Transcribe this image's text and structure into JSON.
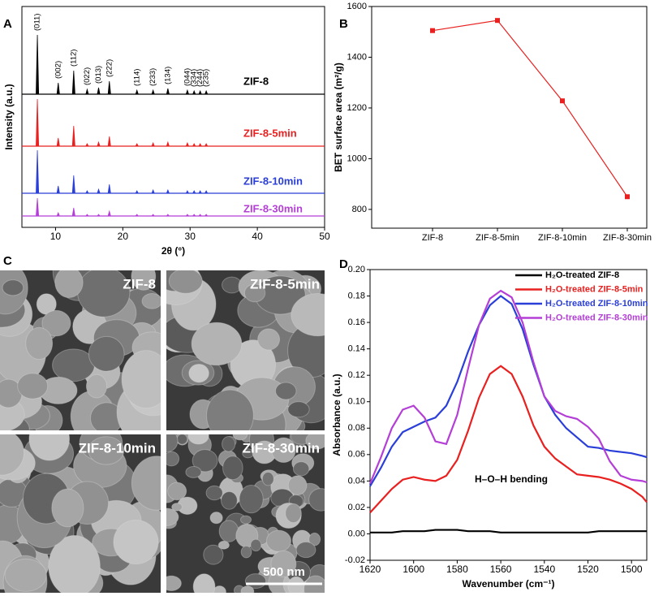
{
  "chart_data": [
    {
      "type": "stick",
      "label": "A",
      "xlabel": "2θ (°)",
      "ylabel": "Intensity (a.u.)",
      "xlim": [
        5,
        50
      ],
      "xticks": [
        10,
        20,
        30,
        40,
        50
      ],
      "x": [
        7.3,
        10.4,
        12.7,
        14.7,
        16.4,
        18.0,
        22.1,
        24.5,
        26.7,
        29.6,
        30.6,
        31.5,
        32.4
      ],
      "peak_labels": [
        "(011)",
        "(002)",
        "(112)",
        "(022)",
        "(013)",
        "(222)",
        "(114)",
        "(233)",
        "(134)",
        "(044)",
        "(334)",
        "(244)",
        "(235)"
      ],
      "series": [
        {
          "name": "ZIF-8",
          "color": "#000000",
          "values": [
            73,
            14,
            29,
            6,
            8,
            16,
            5,
            5,
            7,
            5,
            4,
            4,
            4
          ]
        },
        {
          "name": "ZIF-8-5min",
          "color": "#e8201f",
          "values": [
            58,
            10,
            25,
            3,
            5,
            12,
            3,
            4,
            5,
            4,
            3,
            3,
            3
          ]
        },
        {
          "name": "ZIF-8-10min",
          "color": "#2a3ed8",
          "values": [
            53,
            9,
            22,
            3,
            5,
            11,
            3,
            4,
            4,
            3,
            3,
            3,
            3
          ]
        },
        {
          "name": "ZIF-8-30min",
          "color": "#b43fd6",
          "values": [
            22,
            4,
            10,
            2,
            2,
            6,
            2,
            2,
            2,
            2,
            2,
            2,
            2
          ]
        }
      ]
    },
    {
      "type": "line",
      "label": "B",
      "ylabel": "BET surface area (m²/g)",
      "categories": [
        "ZIF-8",
        "ZIF-8-5min",
        "ZIF-8-10min",
        "ZIF-8-30min"
      ],
      "values": [
        1505,
        1545,
        1228,
        850
      ],
      "color": "#e8201f",
      "ylim": [
        726,
        1600
      ],
      "yticks": [
        800,
        1000,
        1200,
        1400,
        1600
      ]
    },
    {
      "type": "line",
      "label": "D",
      "xlabel": "Wavenumber (cm⁻¹)",
      "ylabel": "Absorbance (a.u.)",
      "annotation": "H–O–H bending",
      "xlim": [
        1620,
        1493
      ],
      "xticks": [
        1620,
        1600,
        1580,
        1560,
        1540,
        1520,
        1500
      ],
      "ylim": [
        -0.02,
        0.2
      ],
      "yticks": [
        -0.02,
        {
          "value": 0,
          "label": "0.00"
        },
        0.02,
        0.04,
        0.06,
        0.08,
        {
          "value": 0.1,
          "label": "0.10"
        },
        0.12,
        0.14,
        0.16,
        0.18,
        {
          "value": 0.2,
          "label": "0.20"
        }
      ],
      "x": [
        1620,
        1615,
        1610,
        1605,
        1600,
        1595,
        1590,
        1585,
        1580,
        1575,
        1570,
        1565,
        1560,
        1555,
        1550,
        1545,
        1540,
        1535,
        1530,
        1525,
        1520,
        1515,
        1510,
        1505,
        1500,
        1495,
        1493
      ],
      "series": [
        {
          "name": "H₂O-treated ZIF-8",
          "color": "#000000",
          "values": [
            0.001,
            0.001,
            0.001,
            0.002,
            0.002,
            0.002,
            0.003,
            0.003,
            0.003,
            0.002,
            0.002,
            0.002,
            0.001,
            0.001,
            0.001,
            0.001,
            0.001,
            0.001,
            0.001,
            0.001,
            0.001,
            0.002,
            0.002,
            0.002,
            0.002,
            0.002,
            0.002
          ]
        },
        {
          "name": "H₂O-treated ZIF-8-5min",
          "color": "#e8201f",
          "values": [
            0.016,
            0.025,
            0.034,
            0.041,
            0.043,
            0.041,
            0.04,
            0.044,
            0.056,
            0.078,
            0.103,
            0.121,
            0.127,
            0.121,
            0.104,
            0.082,
            0.066,
            0.057,
            0.051,
            0.045,
            0.044,
            0.043,
            0.041,
            0.038,
            0.034,
            0.028,
            0.024
          ]
        },
        {
          "name": "H₂O-treated ZIF-8-10min",
          "color": "#2a3ed8",
          "values": [
            0.036,
            0.05,
            0.066,
            0.077,
            0.081,
            0.085,
            0.088,
            0.097,
            0.115,
            0.138,
            0.158,
            0.173,
            0.18,
            0.174,
            0.155,
            0.128,
            0.104,
            0.09,
            0.08,
            0.073,
            0.066,
            0.065,
            0.063,
            0.062,
            0.061,
            0.059,
            0.058
          ]
        },
        {
          "name": "H₂O-treated ZIF-8-30min",
          "color": "#b43fd6",
          "values": [
            0.038,
            0.058,
            0.08,
            0.094,
            0.097,
            0.088,
            0.07,
            0.068,
            0.09,
            0.125,
            0.158,
            0.178,
            0.184,
            0.179,
            0.16,
            0.13,
            0.104,
            0.093,
            0.089,
            0.087,
            0.081,
            0.072,
            0.055,
            0.044,
            0.041,
            0.04,
            0.039
          ]
        }
      ]
    }
  ],
  "panel_c": {
    "label": "C",
    "images": [
      {
        "label": "ZIF-8"
      },
      {
        "label": "ZIF-8-5min"
      },
      {
        "label": "ZIF-8-10min"
      },
      {
        "label": "ZIF-8-30min"
      }
    ],
    "scale_bar": "500 nm"
  }
}
